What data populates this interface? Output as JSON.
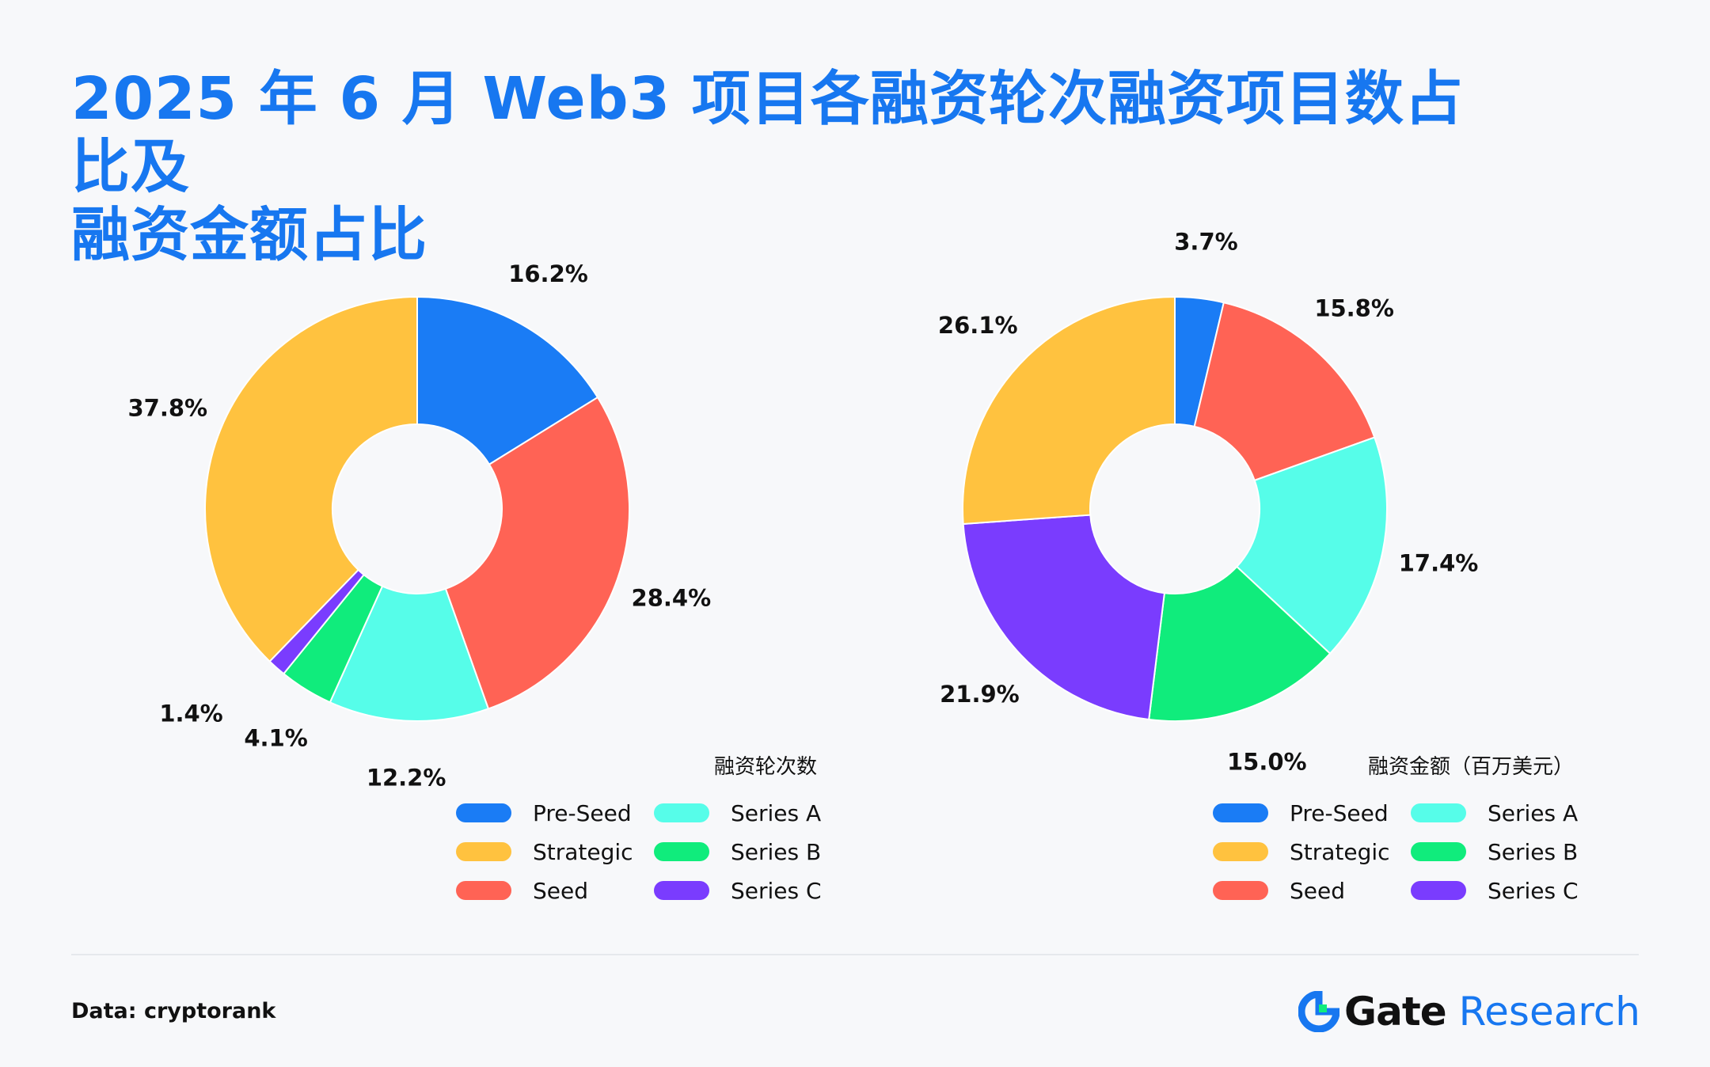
{
  "title": {
    "line1": "2025 年 6 月 Web3 项目各融资轮次融资项目数占比及",
    "line2": "融资金额占比"
  },
  "colors": {
    "title": "#1777f0",
    "Pre-Seed": "#1a7cf5",
    "Strategic": "#ffc23f",
    "Seed": "#ff6355",
    "Series A": "#56fde9",
    "Series B": "#10ec7c",
    "Series C": "#7a3cfe"
  },
  "chart_data": [
    {
      "type": "pie",
      "donut": true,
      "title": "融资轮次数",
      "slices": [
        {
          "name": "Pre-Seed",
          "value": 16.2,
          "label": "16.2%"
        },
        {
          "name": "Seed",
          "value": 28.4,
          "label": "28.4%"
        },
        {
          "name": "Series A",
          "value": 12.2,
          "label": "12.2%"
        },
        {
          "name": "Series B",
          "value": 4.1,
          "label": "4.1%"
        },
        {
          "name": "Series C",
          "value": 1.4,
          "label": "1.4%"
        },
        {
          "name": "Strategic",
          "value": 37.8,
          "label": "37.8%"
        }
      ],
      "legend": [
        "Pre-Seed",
        "Series A",
        "Strategic",
        "Series B",
        "Seed",
        "Series C"
      ]
    },
    {
      "type": "pie",
      "donut": true,
      "title": "融资金额（百万美元）",
      "slices": [
        {
          "name": "Pre-Seed",
          "value": 3.7,
          "label": "3.7%"
        },
        {
          "name": "Seed",
          "value": 15.8,
          "label": "15.8%"
        },
        {
          "name": "Series A",
          "value": 17.4,
          "label": "17.4%"
        },
        {
          "name": "Series B",
          "value": 15.0,
          "label": "15.0%"
        },
        {
          "name": "Series C",
          "value": 21.9,
          "label": "21.9%"
        },
        {
          "name": "Strategic",
          "value": 26.1,
          "label": "26.1%"
        }
      ],
      "legend": [
        "Pre-Seed",
        "Series A",
        "Strategic",
        "Series B",
        "Seed",
        "Series C"
      ]
    }
  ],
  "footer": {
    "source": "Data: cryptorank",
    "brand_gate": "Gate",
    "brand_research": "Research"
  }
}
